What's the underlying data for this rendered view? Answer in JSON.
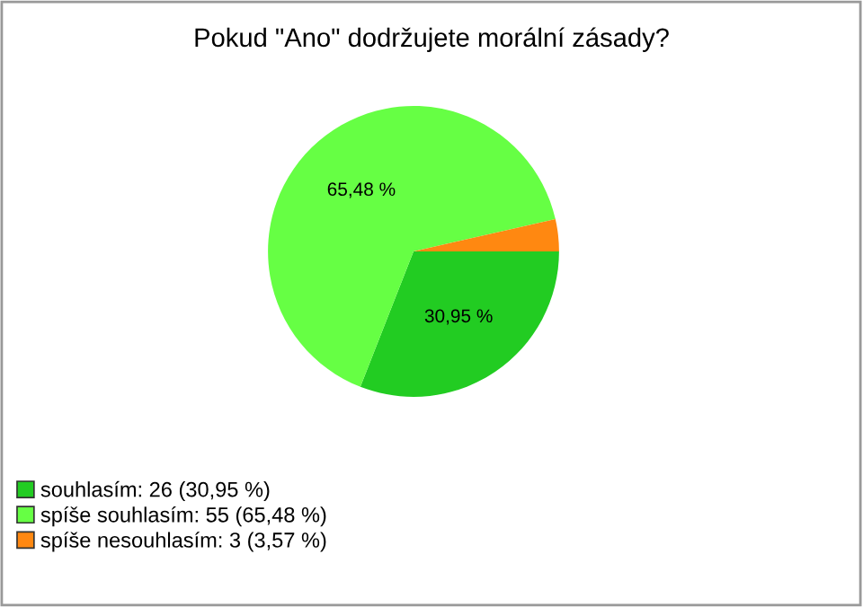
{
  "chart_data": {
    "type": "pie",
    "title": "Pokud \"Ano\" dodržujete morální zásady?",
    "categories": [
      "souhlasím: 26 (30,95 %)",
      "spíše souhlasím: 55 (65,48 %)",
      "spíše nesouhlasím: 3 (3,57 %)"
    ],
    "values": [
      30.95,
      65.48,
      3.57
    ],
    "colors": [
      "#22cc22",
      "#66ff44",
      "#ff8811"
    ],
    "value_labels": [
      "30,95 %",
      "65,48 %",
      null
    ],
    "legend": "bottom left"
  }
}
